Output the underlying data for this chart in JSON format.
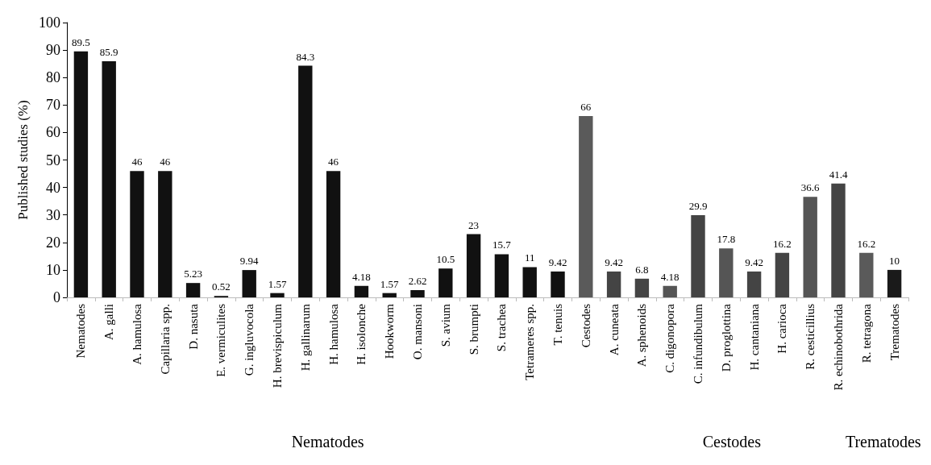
{
  "chart_data": {
    "type": "bar",
    "ylabel": "Published studies (%)",
    "categories": [
      "Nematodes",
      "A. galli",
      "A. hamulosa",
      "Capillaria spp.",
      "D. nasuta",
      "E. vermiculites",
      "G. ingluvocola",
      "H. brevispiculum",
      "H. gallinarum",
      "H. hamulosa",
      "H. isolonche",
      "Hookworm",
      "O. mansoni",
      "S. avium",
      "S. brumpti",
      "S. trachea",
      "Tetrameres spp.",
      "T. tenuis",
      "Cestodes",
      "A. cuneata",
      "A. sphenoids",
      "C. digonopora",
      "C. infundibulum",
      "D. proglottina",
      "H. cantaniana",
      "H. carioca",
      "R. cesticillius",
      "R. echinobothrida",
      "R. tetragona",
      "Trematodes"
    ],
    "values": [
      89.5,
      85.9,
      46,
      46,
      5.23,
      0.52,
      9.94,
      1.57,
      84.3,
      46,
      4.18,
      1.57,
      2.62,
      10.5,
      23,
      15.7,
      11,
      9.42,
      66,
      9.42,
      6.8,
      4.18,
      29.9,
      17.8,
      9.42,
      16.2,
      36.6,
      41.4,
      16.2,
      10
    ],
    "colors": [
      "#111111",
      "#111111",
      "#111111",
      "#111111",
      "#111111",
      "#111111",
      "#111111",
      "#111111",
      "#111111",
      "#111111",
      "#111111",
      "#111111",
      "#111111",
      "#111111",
      "#111111",
      "#111111",
      "#111111",
      "#111111",
      "#5a5a5a",
      "#444444",
      "#444444",
      "#555555",
      "#444444",
      "#555555",
      "#444444",
      "#444444",
      "#555555",
      "#444444",
      "#5a5a5a",
      "#1a1a1a"
    ],
    "data_labels": true,
    "ylim": [
      0,
      100
    ],
    "yticks": [
      0,
      10,
      20,
      30,
      40,
      50,
      60,
      70,
      80,
      90,
      100
    ],
    "grid": false,
    "annotations": [
      "Nematodes",
      "Cestodes",
      "Trematodes"
    ]
  }
}
